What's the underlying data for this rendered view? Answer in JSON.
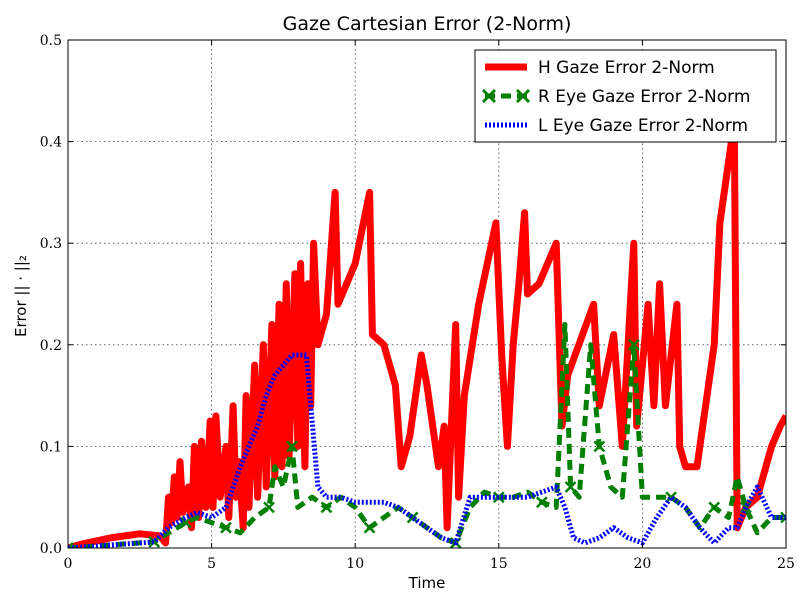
{
  "chart_data": {
    "type": "line",
    "title": "Gaze Cartesian Error (2-Norm)",
    "xlabel": "Time",
    "ylabel": "Error || · ||₂",
    "xlim": [
      0,
      25
    ],
    "ylim": [
      0,
      0.5
    ],
    "x_ticks": [
      "0",
      "5",
      "10",
      "15",
      "20",
      "25"
    ],
    "y_ticks": [
      "0.0",
      "0.1",
      "0.2",
      "0.3",
      "0.4",
      "0.5"
    ],
    "grid": true,
    "legend_position": "top-right",
    "series": [
      {
        "name": "H Gaze Error 2-Norm",
        "color": "#ff0000",
        "style": "solid",
        "points": [
          [
            0,
            0
          ],
          [
            0.5,
            0.004
          ],
          [
            1.5,
            0.01
          ],
          [
            2.5,
            0.014
          ],
          [
            3.2,
            0.012
          ],
          [
            3.4,
            0.005
          ],
          [
            3.5,
            0.05
          ],
          [
            3.6,
            0.025
          ],
          [
            3.7,
            0.07
          ],
          [
            3.8,
            0.03
          ],
          [
            3.9,
            0.085
          ],
          [
            4.0,
            0.035
          ],
          [
            4.2,
            0.06
          ],
          [
            4.3,
            0.02
          ],
          [
            4.4,
            0.1
          ],
          [
            4.55,
            0.03
          ],
          [
            4.65,
            0.105
          ],
          [
            4.8,
            0.04
          ],
          [
            4.95,
            0.125
          ],
          [
            5.05,
            0.04
          ],
          [
            5.15,
            0.13
          ],
          [
            5.3,
            0.05
          ],
          [
            5.5,
            0.1
          ],
          [
            5.6,
            0.03
          ],
          [
            5.75,
            0.14
          ],
          [
            5.85,
            0.05
          ],
          [
            5.95,
            0.085
          ],
          [
            6.1,
            0.02
          ],
          [
            6.2,
            0.15
          ],
          [
            6.3,
            0.04
          ],
          [
            6.5,
            0.18
          ],
          [
            6.6,
            0.05
          ],
          [
            6.8,
            0.2
          ],
          [
            6.9,
            0.06
          ],
          [
            7.1,
            0.22
          ],
          [
            7.2,
            0.07
          ],
          [
            7.35,
            0.24
          ],
          [
            7.45,
            0.08
          ],
          [
            7.6,
            0.26
          ],
          [
            7.7,
            0.09
          ],
          [
            7.9,
            0.27
          ],
          [
            8.0,
            0.1
          ],
          [
            8.1,
            0.28
          ],
          [
            8.25,
            0.08
          ],
          [
            8.35,
            0.26
          ],
          [
            8.45,
            0.14
          ],
          [
            8.55,
            0.3
          ],
          [
            8.7,
            0.2
          ],
          [
            9.0,
            0.23
          ],
          [
            9.3,
            0.35
          ],
          [
            9.4,
            0.24
          ],
          [
            10.0,
            0.28
          ],
          [
            10.5,
            0.35
          ],
          [
            10.6,
            0.21
          ],
          [
            11.0,
            0.2
          ],
          [
            11.4,
            0.16
          ],
          [
            11.6,
            0.08
          ],
          [
            11.9,
            0.11
          ],
          [
            12.3,
            0.19
          ],
          [
            12.5,
            0.16
          ],
          [
            12.7,
            0.12
          ],
          [
            12.9,
            0.08
          ],
          [
            13.1,
            0.12
          ],
          [
            13.2,
            0.02
          ],
          [
            13.5,
            0.22
          ],
          [
            13.6,
            0.05
          ],
          [
            13.8,
            0.15
          ],
          [
            14.3,
            0.24
          ],
          [
            14.9,
            0.32
          ],
          [
            15.1,
            0.19
          ],
          [
            15.3,
            0.1
          ],
          [
            15.5,
            0.2
          ],
          [
            15.7,
            0.26
          ],
          [
            15.9,
            0.33
          ],
          [
            16.0,
            0.25
          ],
          [
            16.4,
            0.26
          ],
          [
            17.0,
            0.3
          ],
          [
            17.2,
            0.12
          ],
          [
            17.4,
            0.17
          ],
          [
            18.3,
            0.24
          ],
          [
            18.5,
            0.14
          ],
          [
            19.0,
            0.21
          ],
          [
            19.3,
            0.1
          ],
          [
            19.7,
            0.3
          ],
          [
            19.8,
            0.12
          ],
          [
            20.2,
            0.24
          ],
          [
            20.4,
            0.14
          ],
          [
            20.6,
            0.26
          ],
          [
            20.8,
            0.14
          ],
          [
            21.2,
            0.24
          ],
          [
            21.3,
            0.1
          ],
          [
            21.5,
            0.08
          ],
          [
            21.9,
            0.08
          ],
          [
            22.5,
            0.2
          ],
          [
            22.7,
            0.32
          ],
          [
            23.2,
            0.42
          ],
          [
            23.3,
            0.02
          ],
          [
            23.6,
            0.04
          ],
          [
            24.0,
            0.05
          ],
          [
            24.3,
            0.08
          ],
          [
            24.5,
            0.1
          ],
          [
            24.8,
            0.12
          ],
          [
            25,
            0.13
          ]
        ]
      },
      {
        "name": "R Eye Gaze Error 2-Norm",
        "color": "#007f00",
        "style": "dash-x",
        "points": [
          [
            0,
            0
          ],
          [
            1,
            0.002
          ],
          [
            2,
            0.004
          ],
          [
            3,
            0.006
          ],
          [
            3.5,
            0.015
          ],
          [
            3.8,
            0.02
          ],
          [
            4.1,
            0.025
          ],
          [
            4.5,
            0.03
          ],
          [
            5,
            0.025
          ],
          [
            5.5,
            0.02
          ],
          [
            6,
            0.015
          ],
          [
            6.5,
            0.03
          ],
          [
            7,
            0.04
          ],
          [
            7.2,
            0.08
          ],
          [
            7.5,
            0.06
          ],
          [
            7.8,
            0.1
          ],
          [
            8.0,
            0.04
          ],
          [
            8.5,
            0.05
          ],
          [
            9,
            0.04
          ],
          [
            9.5,
            0.05
          ],
          [
            10,
            0.04
          ],
          [
            10.5,
            0.02
          ],
          [
            11,
            0.03
          ],
          [
            11.5,
            0.04
          ],
          [
            12,
            0.03
          ],
          [
            12.5,
            0.02
          ],
          [
            13,
            0.01
          ],
          [
            13.5,
            0.005
          ],
          [
            14,
            0.04
          ],
          [
            14.5,
            0.055
          ],
          [
            15,
            0.05
          ],
          [
            15.5,
            0.05
          ],
          [
            16,
            0.055
          ],
          [
            16.5,
            0.045
          ],
          [
            17,
            0.04
          ],
          [
            17.3,
            0.22
          ],
          [
            17.5,
            0.06
          ],
          [
            17.8,
            0.05
          ],
          [
            18.2,
            0.2
          ],
          [
            18.5,
            0.1
          ],
          [
            18.9,
            0.06
          ],
          [
            19.3,
            0.05
          ],
          [
            19.7,
            0.2
          ],
          [
            20,
            0.05
          ],
          [
            20.5,
            0.05
          ],
          [
            21,
            0.05
          ],
          [
            21.5,
            0.04
          ],
          [
            22,
            0.02
          ],
          [
            22.5,
            0.04
          ],
          [
            23,
            0.03
          ],
          [
            23.3,
            0.07
          ],
          [
            23.6,
            0.04
          ],
          [
            24,
            0.015
          ],
          [
            24.5,
            0.03
          ],
          [
            25,
            0.03
          ]
        ]
      },
      {
        "name": "L Eye Gaze Error 2-Norm",
        "color": "#0000ff",
        "style": "dotted",
        "points": [
          [
            0,
            0
          ],
          [
            1,
            0.002
          ],
          [
            2,
            0.004
          ],
          [
            3,
            0.006
          ],
          [
            3.5,
            0.02
          ],
          [
            3.8,
            0.025
          ],
          [
            4.1,
            0.03
          ],
          [
            4.5,
            0.035
          ],
          [
            5,
            0.03
          ],
          [
            5.5,
            0.04
          ],
          [
            6,
            0.08
          ],
          [
            6.3,
            0.1
          ],
          [
            6.6,
            0.12
          ],
          [
            6.9,
            0.15
          ],
          [
            7.2,
            0.17
          ],
          [
            7.5,
            0.18
          ],
          [
            7.8,
            0.19
          ],
          [
            8.0,
            0.19
          ],
          [
            8.3,
            0.19
          ],
          [
            8.7,
            0.06
          ],
          [
            9,
            0.05
          ],
          [
            9.5,
            0.05
          ],
          [
            10,
            0.045
          ],
          [
            10.5,
            0.045
          ],
          [
            11,
            0.045
          ],
          [
            11.5,
            0.04
          ],
          [
            12,
            0.03
          ],
          [
            12.5,
            0.02
          ],
          [
            13,
            0.01
          ],
          [
            13.5,
            0.005
          ],
          [
            14,
            0.05
          ],
          [
            14.5,
            0.05
          ],
          [
            15,
            0.05
          ],
          [
            15.5,
            0.05
          ],
          [
            16,
            0.05
          ],
          [
            16.5,
            0.055
          ],
          [
            17,
            0.06
          ],
          [
            17.3,
            0.04
          ],
          [
            17.6,
            0.01
          ],
          [
            18,
            0.005
          ],
          [
            18.5,
            0.01
          ],
          [
            19,
            0.02
          ],
          [
            19.5,
            0.01
          ],
          [
            20,
            0.005
          ],
          [
            20.5,
            0.03
          ],
          [
            21,
            0.05
          ],
          [
            21.5,
            0.04
          ],
          [
            22,
            0.02
          ],
          [
            22.5,
            0.005
          ],
          [
            23,
            0.02
          ],
          [
            23.3,
            0.02
          ],
          [
            23.6,
            0.04
          ],
          [
            24,
            0.06
          ],
          [
            24.5,
            0.03
          ],
          [
            25,
            0.03
          ]
        ]
      }
    ]
  }
}
